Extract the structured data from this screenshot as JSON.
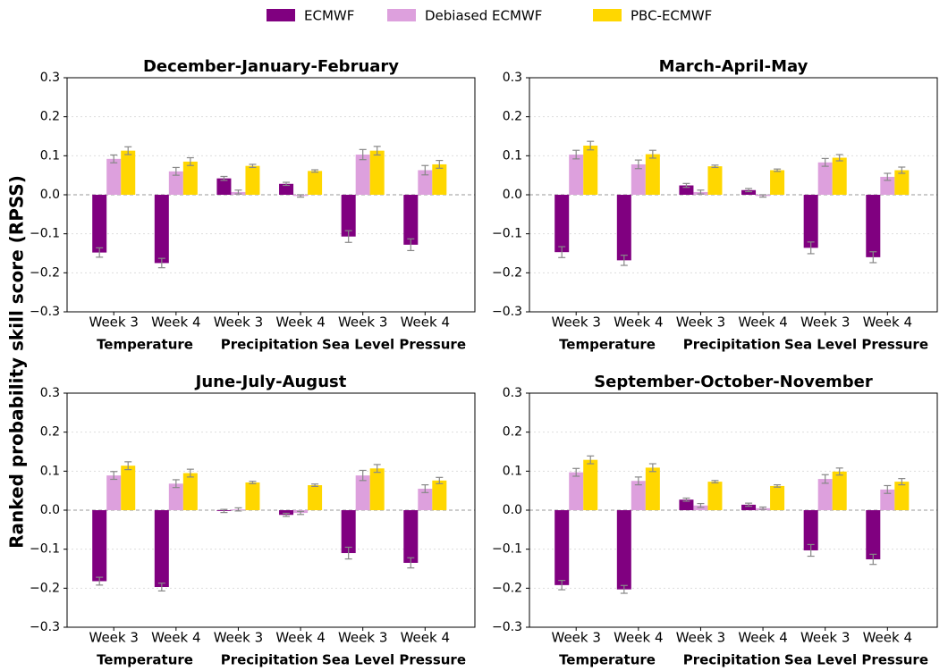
{
  "chart_data": [
    {
      "type": "bar",
      "title": "December-January-February",
      "ylabel": "Ranked probability skill score (RPSS)",
      "categories": [
        "Week 3",
        "Week 4",
        "Week 3",
        "Week 4",
        "Week 3",
        "Week 4"
      ],
      "groups": [
        "Temperature",
        "Precipitation",
        "Sea Level Pressure"
      ],
      "series": [
        {
          "name": "ECMWF",
          "color": "#800080",
          "values": [
            -0.148,
            -0.175,
            0.042,
            0.028,
            -0.107,
            -0.128
          ],
          "errors": [
            0.012,
            0.012,
            0.005,
            0.004,
            0.015,
            0.015
          ]
        },
        {
          "name": "Debiased ECMWF",
          "color": "#dda0dd",
          "values": [
            0.092,
            0.06,
            0.007,
            -0.003,
            0.103,
            0.063
          ],
          "errors": [
            0.01,
            0.01,
            0.005,
            0.003,
            0.013,
            0.012
          ]
        },
        {
          "name": "PBC-ECMWF",
          "color": "#ffd700",
          "values": [
            0.113,
            0.085,
            0.074,
            0.061,
            0.113,
            0.078
          ],
          "errors": [
            0.01,
            0.01,
            0.004,
            0.003,
            0.011,
            0.01
          ]
        }
      ],
      "ylim": [
        -0.3,
        0.3
      ],
      "yticks": [
        {
          "value": -0.3,
          "label": "−0.3"
        },
        {
          "value": -0.2,
          "label": "−0.2"
        },
        {
          "value": -0.1,
          "label": "−0.1"
        },
        {
          "value": 0,
          "label": "0.0"
        },
        0.1,
        0.2,
        0.3
      ],
      "grid": true
    },
    {
      "type": "bar",
      "title": "March-April-May",
      "categories": [
        "Week 3",
        "Week 4",
        "Week 3",
        "Week 4",
        "Week 3",
        "Week 4"
      ],
      "groups": [
        "Temperature",
        "Precipitation",
        "Sea Level Pressure"
      ],
      "series": [
        {
          "name": "ECMWF",
          "color": "#800080",
          "values": [
            -0.147,
            -0.168,
            0.024,
            0.012,
            -0.136,
            -0.16
          ],
          "errors": [
            0.014,
            0.013,
            0.005,
            0.004,
            0.015,
            0.014
          ]
        },
        {
          "name": "Debiased ECMWF",
          "color": "#dda0dd",
          "values": [
            0.103,
            0.078,
            0.007,
            -0.003,
            0.083,
            0.046
          ],
          "errors": [
            0.011,
            0.011,
            0.005,
            0.003,
            0.01,
            0.009
          ]
        },
        {
          "name": "PBC-ECMWF",
          "color": "#ffd700",
          "values": [
            0.126,
            0.104,
            0.073,
            0.063,
            0.095,
            0.063
          ],
          "errors": [
            0.011,
            0.01,
            0.003,
            0.003,
            0.008,
            0.008
          ]
        }
      ],
      "ylim": [
        -0.3,
        0.3
      ],
      "yticks": [
        {
          "value": -0.3,
          "label": "−0.3"
        },
        {
          "value": -0.2,
          "label": "−0.2"
        },
        {
          "value": -0.1,
          "label": "−0.1"
        },
        {
          "value": 0,
          "label": "0.0"
        },
        0.1,
        0.2,
        0.3
      ],
      "grid": true
    },
    {
      "type": "bar",
      "title": "June-July-August",
      "categories": [
        "Week 3",
        "Week 4",
        "Week 3",
        "Week 4",
        "Week 3",
        "Week 4"
      ],
      "groups": [
        "Temperature",
        "Precipitation",
        "Sea Level Pressure"
      ],
      "series": [
        {
          "name": "ECMWF",
          "color": "#800080",
          "values": [
            -0.182,
            -0.197,
            -0.002,
            -0.012,
            -0.11,
            -0.135
          ],
          "errors": [
            0.01,
            0.01,
            0.004,
            0.004,
            0.015,
            0.013
          ]
        },
        {
          "name": "Debiased ECMWF",
          "color": "#dda0dd",
          "values": [
            0.089,
            0.068,
            0.002,
            -0.007,
            0.089,
            0.055
          ],
          "errors": [
            0.01,
            0.01,
            0.004,
            0.004,
            0.013,
            0.01
          ]
        },
        {
          "name": "PBC-ECMWF",
          "color": "#ffd700",
          "values": [
            0.114,
            0.095,
            0.071,
            0.064,
            0.107,
            0.076
          ],
          "errors": [
            0.01,
            0.01,
            0.003,
            0.003,
            0.01,
            0.008
          ]
        }
      ],
      "ylim": [
        -0.3,
        0.3
      ],
      "yticks": [
        {
          "value": -0.3,
          "label": "−0.3"
        },
        {
          "value": -0.2,
          "label": "−0.2"
        },
        {
          "value": -0.1,
          "label": "−0.1"
        },
        {
          "value": 0,
          "label": "0.0"
        },
        0.1,
        0.2,
        0.3
      ],
      "grid": true
    },
    {
      "type": "bar",
      "title": "September-October-November",
      "categories": [
        "Week 3",
        "Week 4",
        "Week 3",
        "Week 4",
        "Week 3",
        "Week 4"
      ],
      "groups": [
        "Temperature",
        "Precipitation",
        "Sea Level Pressure"
      ],
      "series": [
        {
          "name": "ECMWF",
          "color": "#800080",
          "values": [
            -0.192,
            -0.203,
            0.027,
            0.014,
            -0.103,
            -0.126
          ],
          "errors": [
            0.012,
            0.01,
            0.004,
            0.004,
            0.015,
            0.013
          ]
        },
        {
          "name": "Debiased ECMWF",
          "color": "#dda0dd",
          "values": [
            0.097,
            0.075,
            0.012,
            0.005,
            0.08,
            0.053
          ],
          "errors": [
            0.01,
            0.01,
            0.005,
            0.003,
            0.011,
            0.01
          ]
        },
        {
          "name": "PBC-ECMWF",
          "color": "#ffd700",
          "values": [
            0.129,
            0.109,
            0.073,
            0.062,
            0.099,
            0.073
          ],
          "errors": [
            0.01,
            0.01,
            0.003,
            0.003,
            0.009,
            0.008
          ]
        }
      ],
      "ylim": [
        -0.3,
        0.3
      ],
      "yticks": [
        {
          "value": -0.3,
          "label": "−0.3"
        },
        {
          "value": -0.2,
          "label": "−0.2"
        },
        {
          "value": -0.1,
          "label": "−0.1"
        },
        {
          "value": 0,
          "label": "0.0"
        },
        0.1,
        0.2,
        0.3
      ],
      "grid": true
    }
  ]
}
